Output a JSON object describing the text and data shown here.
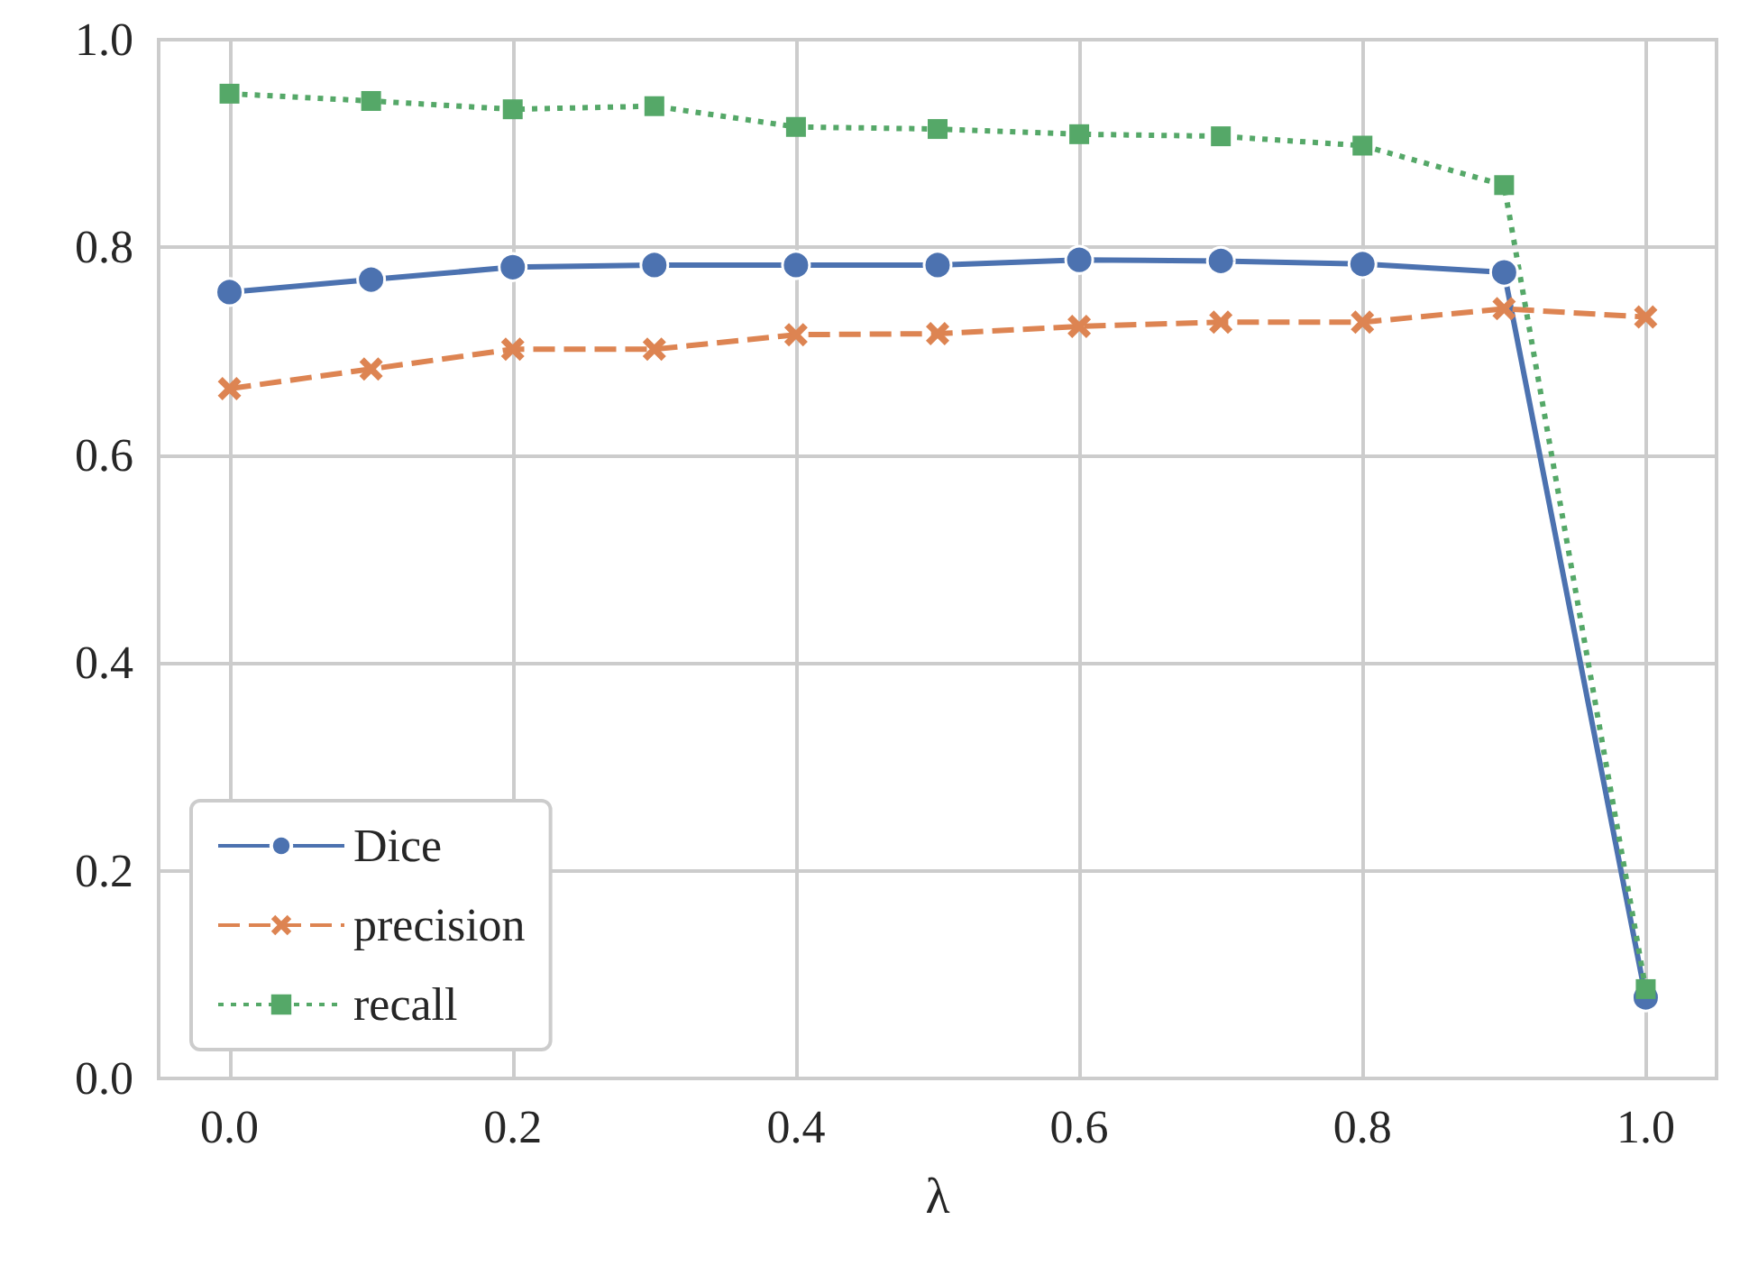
{
  "chart_data": {
    "type": "line",
    "xlabel": "λ",
    "x": [
      0,
      0.1,
      0.2,
      0.3,
      0.4,
      0.5,
      0.6,
      0.7,
      0.8,
      0.9,
      1.0
    ],
    "xlim": [
      -0.05,
      1.05
    ],
    "xticks": [
      {
        "value": 0,
        "label": "0.0"
      },
      {
        "value": 0.2,
        "label": "0.2"
      },
      {
        "value": 0.4,
        "label": "0.4"
      },
      {
        "value": 0.6,
        "label": "0.6"
      },
      {
        "value": 0.8,
        "label": "0.8"
      },
      {
        "value": 1,
        "label": "1.0"
      }
    ],
    "ylim": [
      0,
      1
    ],
    "yticks": [
      {
        "value": 0,
        "label": "0.0"
      },
      {
        "value": 0.2,
        "label": "0.2"
      },
      {
        "value": 0.4,
        "label": "0.4"
      },
      {
        "value": 0.6,
        "label": "0.6"
      },
      {
        "value": 0.8,
        "label": "0.8"
      },
      {
        "value": 1,
        "label": "1.0"
      }
    ],
    "grid": true,
    "legend": "bottom left",
    "series": [
      {
        "name": "Dice",
        "color": "#4c72b0",
        "marker": "circle",
        "line_style": "solid",
        "values": [
          0.757,
          0.769,
          0.781,
          0.783,
          0.783,
          0.783,
          0.788,
          0.787,
          0.784,
          0.776,
          0.078
        ]
      },
      {
        "name": "precision",
        "color": "#dd8452",
        "marker": "cross",
        "line_style": "dashed",
        "values": [
          0.664,
          0.683,
          0.702,
          0.702,
          0.716,
          0.717,
          0.724,
          0.728,
          0.728,
          0.741,
          0.733
        ]
      },
      {
        "name": "recall",
        "color": "#55a868",
        "marker": "square",
        "line_style": "dotted",
        "values": [
          0.948,
          0.941,
          0.933,
          0.936,
          0.916,
          0.914,
          0.909,
          0.907,
          0.898,
          0.86,
          0.086
        ]
      }
    ]
  }
}
